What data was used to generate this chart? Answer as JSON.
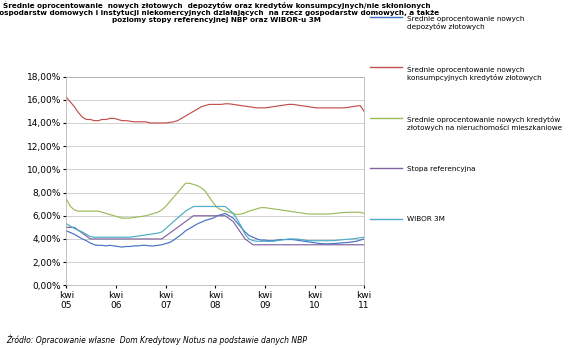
{
  "title_line1": "Średnie oprocentowanie  nowych złotowych  depozytów oraz kredytów konsumpcyjnych/nie skłonionych",
  "title_line2": "gospodarstw domowych i instytucji niekomercyjnych działających  na rzecz gospodarstw domowych, a także",
  "title_line3": "poziomy stopy referencyjnej NBP oraz WIBOR-u 3M",
  "source": "Źródło: Opracowanie własne  Dom Kredytowy Notus na podstawie danych NBP",
  "xtick_labels": [
    "kwi\n05",
    "kwi\n06",
    "kwi\n07",
    "kwi\n08",
    "kwi\n09",
    "kwi\n10",
    "kwi\n11"
  ],
  "ylim": [
    0.0,
    0.18
  ],
  "legend_entries": [
    "Średnie oprocentowanie nowych\ndepozytów złotowych",
    "Średnie oprocentowanie nowych\nkonsumpcyjnych kredytów złotowych",
    "Średnie oprocentowanie nowych kredytów\nzłotowych na nieruchomości mieszkaniowe",
    "Stopa referencyjna",
    "WIBOR 3M"
  ],
  "line_colors": [
    "#4472c4",
    "#c0504d",
    "#9bbb59",
    "#8064a2",
    "#4bacc6"
  ],
  "background_color": "#ffffff",
  "plot_bg_color": "#ffffff",
  "grid_color": "#bfbfbf",
  "n_points": 76,
  "deposit_data": [
    0.047,
    0.0455,
    0.044,
    0.042,
    0.04,
    0.0385,
    0.0365,
    0.035,
    0.0345,
    0.0345,
    0.034,
    0.0345,
    0.034,
    0.0335,
    0.033,
    0.0335,
    0.0335,
    0.034,
    0.034,
    0.0345,
    0.0345,
    0.034,
    0.034,
    0.0345,
    0.035,
    0.036,
    0.037,
    0.039,
    0.0415,
    0.044,
    0.047,
    0.049,
    0.051,
    0.053,
    0.0545,
    0.056,
    0.057,
    0.058,
    0.06,
    0.061,
    0.062,
    0.06,
    0.058,
    0.054,
    0.05,
    0.046,
    0.043,
    0.0415,
    0.04,
    0.039,
    0.039,
    0.0385,
    0.0385,
    0.039,
    0.0395,
    0.0395,
    0.0395,
    0.0395,
    0.039,
    0.0385,
    0.038,
    0.0375,
    0.037,
    0.0365,
    0.036,
    0.0358,
    0.0358,
    0.036,
    0.0362,
    0.0365,
    0.0368,
    0.037,
    0.0375,
    0.038,
    0.039,
    0.04
  ],
  "consumer_data": [
    0.162,
    0.158,
    0.154,
    0.149,
    0.145,
    0.143,
    0.143,
    0.142,
    0.142,
    0.143,
    0.143,
    0.144,
    0.144,
    0.143,
    0.142,
    0.142,
    0.1415,
    0.141,
    0.141,
    0.141,
    0.141,
    0.14,
    0.14,
    0.14,
    0.14,
    0.14,
    0.1405,
    0.141,
    0.142,
    0.144,
    0.146,
    0.148,
    0.15,
    0.152,
    0.154,
    0.155,
    0.156,
    0.156,
    0.156,
    0.156,
    0.1565,
    0.1565,
    0.156,
    0.1555,
    0.155,
    0.1545,
    0.154,
    0.1535,
    0.153,
    0.153,
    0.153,
    0.1535,
    0.154,
    0.1545,
    0.155,
    0.1555,
    0.156,
    0.156,
    0.1555,
    0.155,
    0.1545,
    0.154,
    0.1535,
    0.153,
    0.153,
    0.153,
    0.153,
    0.153,
    0.153,
    0.153,
    0.153,
    0.1535,
    0.154,
    0.1545,
    0.155,
    0.15
  ],
  "mortgage_data": [
    0.074,
    0.068,
    0.065,
    0.064,
    0.064,
    0.064,
    0.064,
    0.064,
    0.064,
    0.063,
    0.062,
    0.061,
    0.06,
    0.059,
    0.058,
    0.058,
    0.058,
    0.0585,
    0.059,
    0.0595,
    0.06,
    0.061,
    0.062,
    0.063,
    0.065,
    0.068,
    0.072,
    0.076,
    0.08,
    0.084,
    0.088,
    0.088,
    0.087,
    0.086,
    0.084,
    0.081,
    0.076,
    0.071,
    0.067,
    0.065,
    0.064,
    0.063,
    0.062,
    0.061,
    0.0615,
    0.0625,
    0.064,
    0.065,
    0.066,
    0.067,
    0.067,
    0.0665,
    0.066,
    0.0655,
    0.065,
    0.0645,
    0.064,
    0.0635,
    0.063,
    0.0625,
    0.062,
    0.0615,
    0.0615,
    0.0615,
    0.0615,
    0.0615,
    0.0615,
    0.0618,
    0.0622,
    0.0625,
    0.0628,
    0.063,
    0.063,
    0.063,
    0.063,
    0.062
  ],
  "ref_rate_data": [
    0.05,
    0.05,
    0.05,
    0.0475,
    0.045,
    0.0425,
    0.04,
    0.04,
    0.04,
    0.04,
    0.04,
    0.04,
    0.04,
    0.04,
    0.04,
    0.04,
    0.04,
    0.04,
    0.04,
    0.04,
    0.04,
    0.04,
    0.04,
    0.04,
    0.04,
    0.0425,
    0.045,
    0.0475,
    0.05,
    0.0525,
    0.055,
    0.0575,
    0.06,
    0.06,
    0.06,
    0.06,
    0.06,
    0.06,
    0.06,
    0.06,
    0.06,
    0.0575,
    0.055,
    0.05,
    0.045,
    0.04,
    0.0375,
    0.035,
    0.035,
    0.035,
    0.035,
    0.035,
    0.035,
    0.035,
    0.035,
    0.035,
    0.035,
    0.035,
    0.035,
    0.035,
    0.035,
    0.035,
    0.035,
    0.035,
    0.035,
    0.035,
    0.035,
    0.035,
    0.035,
    0.035,
    0.035,
    0.035,
    0.035,
    0.035,
    0.035,
    0.035
  ],
  "wibor_data": [
    0.053,
    0.051,
    0.049,
    0.0475,
    0.046,
    0.044,
    0.042,
    0.0415,
    0.0415,
    0.0415,
    0.0415,
    0.0415,
    0.0415,
    0.0415,
    0.0415,
    0.0415,
    0.0415,
    0.042,
    0.0425,
    0.043,
    0.0435,
    0.044,
    0.0445,
    0.045,
    0.046,
    0.049,
    0.052,
    0.055,
    0.058,
    0.061,
    0.064,
    0.066,
    0.068,
    0.068,
    0.068,
    0.068,
    0.068,
    0.068,
    0.068,
    0.068,
    0.068,
    0.065,
    0.062,
    0.057,
    0.051,
    0.044,
    0.04,
    0.0385,
    0.038,
    0.038,
    0.038,
    0.038,
    0.038,
    0.0385,
    0.039,
    0.0395,
    0.04,
    0.04,
    0.04,
    0.0395,
    0.039,
    0.0385,
    0.0385,
    0.0385,
    0.0385,
    0.0385,
    0.0385,
    0.0385,
    0.0388,
    0.0392,
    0.0395,
    0.0398,
    0.04,
    0.0405,
    0.041,
    0.0415
  ]
}
